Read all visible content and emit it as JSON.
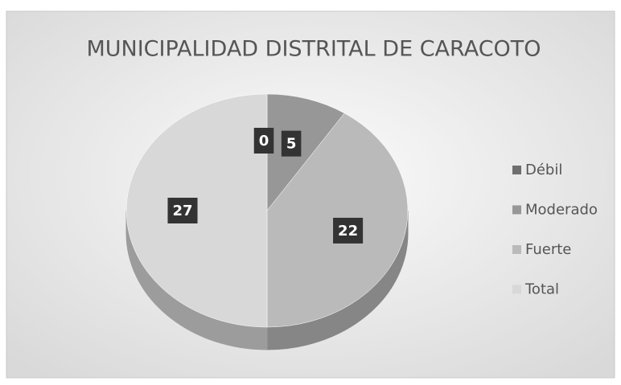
{
  "chart_data": {
    "type": "pie",
    "title": "MUNICIPALIDAD DISTRITAL DE CARACOTO",
    "categories": [
      "Débil",
      "Moderado",
      "Fuerte",
      "Total"
    ],
    "values": [
      0,
      5,
      22,
      27
    ],
    "colors": [
      "#6e6e6e",
      "#979797",
      "#bababa",
      "#d8d8d8"
    ],
    "legend": "right"
  }
}
